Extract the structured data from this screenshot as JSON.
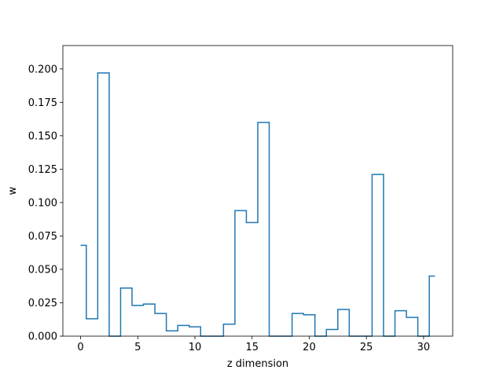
{
  "chart_data": {
    "type": "line",
    "style": "step-mid",
    "title": "",
    "xlabel": "z dimension",
    "ylabel": "w",
    "xlim": [
      -1.55,
      32.55
    ],
    "ylim": [
      0.0,
      0.2175
    ],
    "x_ticks": [
      0,
      5,
      10,
      15,
      20,
      25,
      30
    ],
    "x_tick_labels": [
      "0",
      "5",
      "10",
      "15",
      "20",
      "25",
      "30"
    ],
    "y_ticks": [
      0.0,
      0.025,
      0.05,
      0.075,
      0.1,
      0.125,
      0.15,
      0.175,
      0.2
    ],
    "y_tick_labels": [
      "0.000",
      "0.025",
      "0.050",
      "0.075",
      "0.100",
      "0.125",
      "0.150",
      "0.175",
      "0.200"
    ],
    "grid": false,
    "series_color": "#1f77b4",
    "series": [
      {
        "x": [
          0,
          1,
          2,
          3,
          4,
          5,
          6,
          7,
          8,
          9,
          10,
          11,
          12,
          13,
          14,
          15,
          16,
          17,
          18,
          19,
          20,
          21,
          22,
          23,
          24,
          25,
          26,
          27,
          28,
          29,
          30,
          31
        ],
        "values": [
          0.068,
          0.013,
          0.197,
          0.0,
          0.036,
          0.023,
          0.024,
          0.017,
          0.004,
          0.008,
          0.007,
          0.0,
          0.0,
          0.009,
          0.094,
          0.085,
          0.16,
          0.0,
          0.0,
          0.017,
          0.016,
          0.0,
          0.005,
          0.02,
          0.0,
          0.0,
          0.121,
          0.0,
          0.019,
          0.014,
          0.0,
          0.045
        ]
      }
    ]
  }
}
